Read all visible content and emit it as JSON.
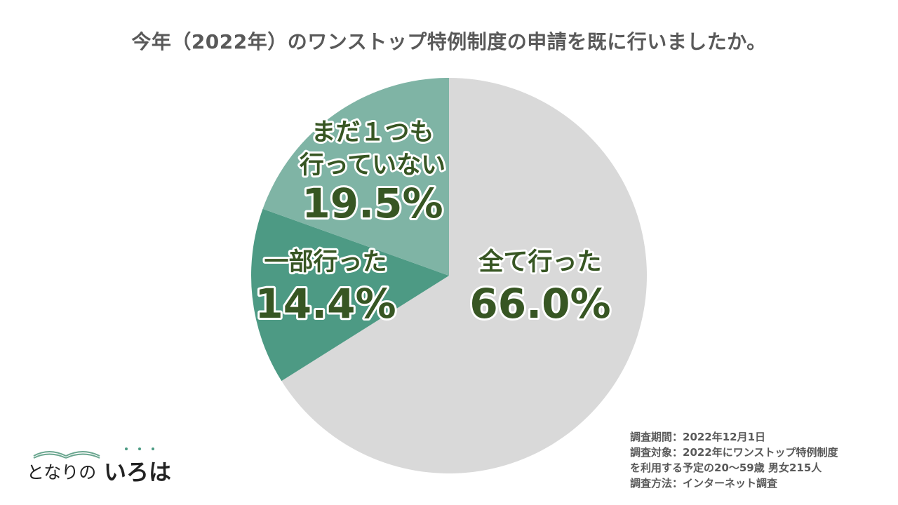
{
  "chart_data": {
    "type": "pie",
    "title": "今年（2022年）のワンストップ特例制度の申請を既に行いましたか。",
    "slices": [
      {
        "label": "全て行った",
        "label_lines": [
          "全て行った"
        ],
        "value": 66.0,
        "value_label": "66.0%",
        "color": "#d9d9d9"
      },
      {
        "label": "一部行った",
        "label_lines": [
          "一部行った"
        ],
        "value": 14.4,
        "value_label": "14.4%",
        "color": "#4d9a84"
      },
      {
        "label": "まだ１つも行っていない",
        "label_lines": [
          "まだ１つも",
          "行っていない"
        ],
        "value": 19.5,
        "value_label": "19.5%",
        "color": "#7fb4a5"
      }
    ],
    "start_angle": "12 o'clock",
    "direction": "clockwise",
    "legend": "none",
    "label_color": "#375623"
  },
  "notes": [
    "調査期間：2022年12月1日",
    "調査対象：2022年にワンストップ特例制度",
    "を利用する予定の20～59歳 男女215人",
    "調査方法：インターネット調査"
  ],
  "logo": {
    "text_plain": "となりの",
    "text_bold": "いろは",
    "color": "#4a9a82"
  }
}
